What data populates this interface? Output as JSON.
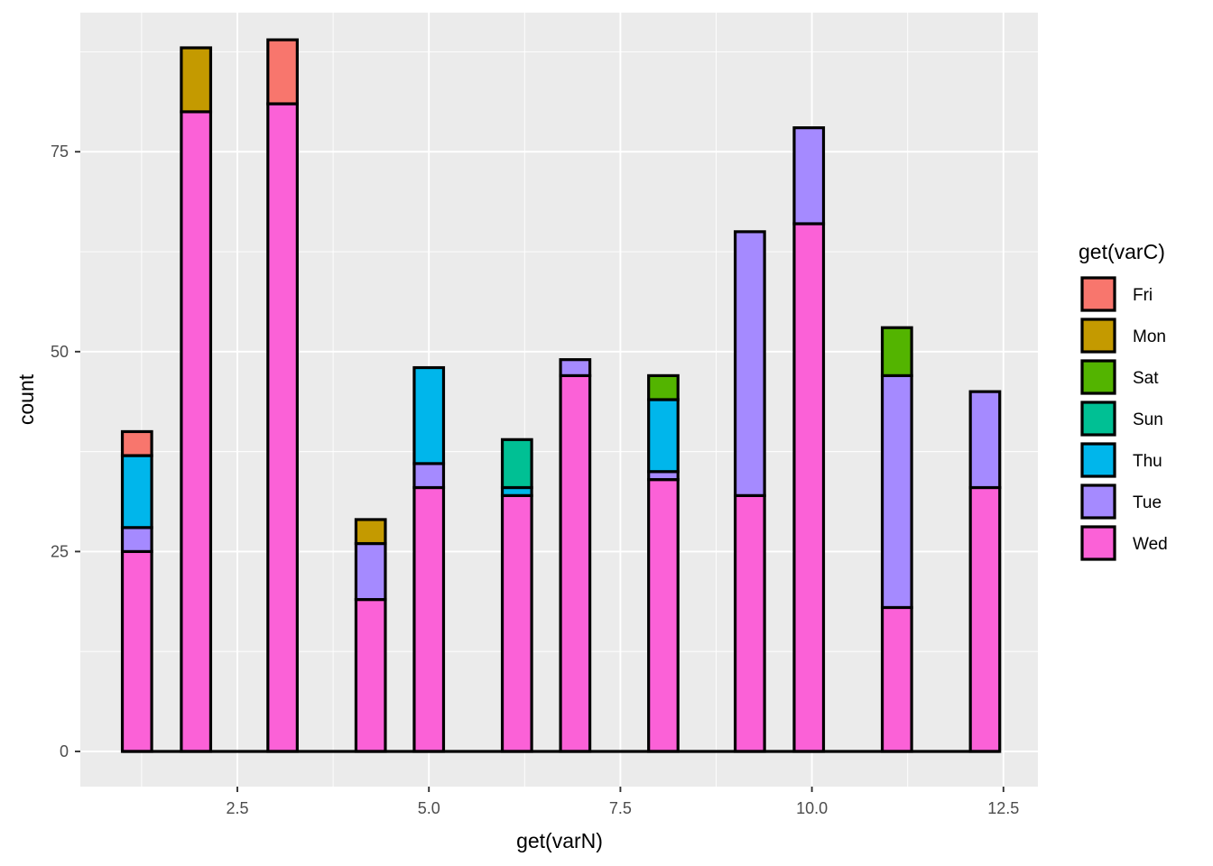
{
  "chart_data": {
    "type": "bar",
    "subtype": "stacked-histogram",
    "xlabel": "get(varN)",
    "ylabel": "count",
    "xlim": [
      0.45,
      12.95
    ],
    "ylim": [
      -4.4,
      92.4
    ],
    "xticks": [
      2.5,
      5.0,
      7.5,
      10.0,
      12.5
    ],
    "xtick_labels": [
      "2.5",
      "5.0",
      "7.5",
      "10.0",
      "12.5"
    ],
    "yticks": [
      0,
      25,
      50,
      75
    ],
    "ytick_labels": [
      "0",
      "25",
      "50",
      "75"
    ],
    "bin_width": 0.3833,
    "grid": true,
    "legend": {
      "title": "get(varC)",
      "position": "right",
      "entries": [
        "Fri",
        "Mon",
        "Sat",
        "Sun",
        "Thu",
        "Tue",
        "Wed"
      ]
    },
    "colors": {
      "Fri": "#F8766D",
      "Mon": "#C49A00",
      "Sat": "#53B400",
      "Sun": "#00C094",
      "Thu": "#00B6EB",
      "Tue": "#A58AFF",
      "Wed": "#FB61D7"
    },
    "stack_order": [
      "Wed",
      "Tue",
      "Thu",
      "Sun",
      "Sat",
      "Mon",
      "Fri"
    ],
    "x": [
      1.19,
      1.96,
      3.09,
      4.24,
      5.0,
      6.15,
      6.91,
      8.06,
      9.19,
      9.96,
      11.11,
      12.26
    ],
    "series": [
      {
        "name": "Wed",
        "values": [
          25,
          80,
          81,
          19,
          33,
          32,
          47,
          34,
          32,
          66,
          18,
          33
        ]
      },
      {
        "name": "Tue",
        "values": [
          3,
          0,
          0,
          7,
          3,
          0,
          2,
          1,
          33,
          12,
          29,
          12
        ]
      },
      {
        "name": "Thu",
        "values": [
          9,
          0,
          0,
          0,
          12,
          1,
          0,
          9,
          0,
          0,
          0,
          0
        ]
      },
      {
        "name": "Sun",
        "values": [
          0,
          0,
          0,
          0,
          0,
          6,
          0,
          0,
          0,
          0,
          0,
          0
        ]
      },
      {
        "name": "Sat",
        "values": [
          0,
          0,
          0,
          0,
          0,
          0,
          0,
          3,
          0,
          0,
          6,
          0
        ]
      },
      {
        "name": "Mon",
        "values": [
          0,
          8,
          0,
          3,
          0,
          0,
          0,
          0,
          0,
          0,
          0,
          0
        ]
      },
      {
        "name": "Fri",
        "values": [
          3,
          0,
          8,
          0,
          0,
          0,
          0,
          0,
          0,
          0,
          0,
          0
        ]
      }
    ]
  }
}
